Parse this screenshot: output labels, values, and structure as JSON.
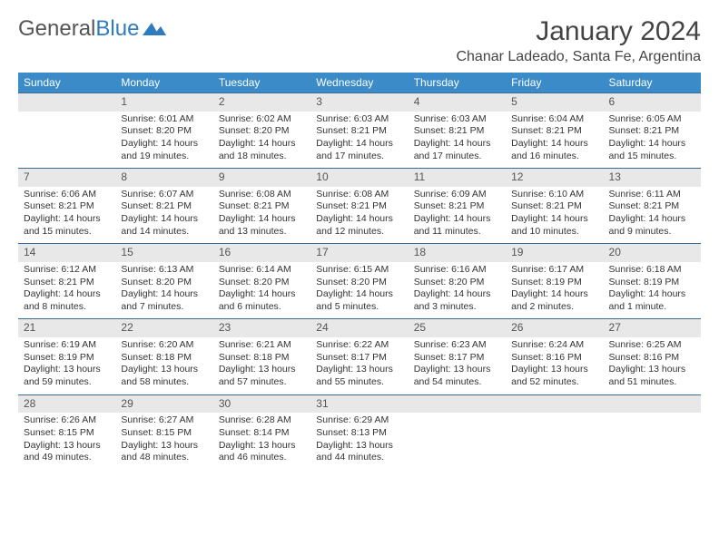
{
  "logo": {
    "text1": "General",
    "text2": "Blue"
  },
  "title": "January 2024",
  "location": "Chanar Ladeado, Santa Fe, Argentina",
  "colors": {
    "header_bg": "#3b8bc8",
    "header_text": "#ffffff",
    "daynum_bg": "#e8e8e8",
    "border": "#3b6a94",
    "logo_blue": "#2f7bbf"
  },
  "weekdays": [
    "Sunday",
    "Monday",
    "Tuesday",
    "Wednesday",
    "Thursday",
    "Friday",
    "Saturday"
  ],
  "weeks": [
    {
      "nums": [
        "",
        "1",
        "2",
        "3",
        "4",
        "5",
        "6"
      ],
      "cells": [
        {
          "sunrise": "",
          "sunset": "",
          "daylight": ""
        },
        {
          "sunrise": "Sunrise: 6:01 AM",
          "sunset": "Sunset: 8:20 PM",
          "daylight": "Daylight: 14 hours and 19 minutes."
        },
        {
          "sunrise": "Sunrise: 6:02 AM",
          "sunset": "Sunset: 8:20 PM",
          "daylight": "Daylight: 14 hours and 18 minutes."
        },
        {
          "sunrise": "Sunrise: 6:03 AM",
          "sunset": "Sunset: 8:21 PM",
          "daylight": "Daylight: 14 hours and 17 minutes."
        },
        {
          "sunrise": "Sunrise: 6:03 AM",
          "sunset": "Sunset: 8:21 PM",
          "daylight": "Daylight: 14 hours and 17 minutes."
        },
        {
          "sunrise": "Sunrise: 6:04 AM",
          "sunset": "Sunset: 8:21 PM",
          "daylight": "Daylight: 14 hours and 16 minutes."
        },
        {
          "sunrise": "Sunrise: 6:05 AM",
          "sunset": "Sunset: 8:21 PM",
          "daylight": "Daylight: 14 hours and 15 minutes."
        }
      ]
    },
    {
      "nums": [
        "7",
        "8",
        "9",
        "10",
        "11",
        "12",
        "13"
      ],
      "cells": [
        {
          "sunrise": "Sunrise: 6:06 AM",
          "sunset": "Sunset: 8:21 PM",
          "daylight": "Daylight: 14 hours and 15 minutes."
        },
        {
          "sunrise": "Sunrise: 6:07 AM",
          "sunset": "Sunset: 8:21 PM",
          "daylight": "Daylight: 14 hours and 14 minutes."
        },
        {
          "sunrise": "Sunrise: 6:08 AM",
          "sunset": "Sunset: 8:21 PM",
          "daylight": "Daylight: 14 hours and 13 minutes."
        },
        {
          "sunrise": "Sunrise: 6:08 AM",
          "sunset": "Sunset: 8:21 PM",
          "daylight": "Daylight: 14 hours and 12 minutes."
        },
        {
          "sunrise": "Sunrise: 6:09 AM",
          "sunset": "Sunset: 8:21 PM",
          "daylight": "Daylight: 14 hours and 11 minutes."
        },
        {
          "sunrise": "Sunrise: 6:10 AM",
          "sunset": "Sunset: 8:21 PM",
          "daylight": "Daylight: 14 hours and 10 minutes."
        },
        {
          "sunrise": "Sunrise: 6:11 AM",
          "sunset": "Sunset: 8:21 PM",
          "daylight": "Daylight: 14 hours and 9 minutes."
        }
      ]
    },
    {
      "nums": [
        "14",
        "15",
        "16",
        "17",
        "18",
        "19",
        "20"
      ],
      "cells": [
        {
          "sunrise": "Sunrise: 6:12 AM",
          "sunset": "Sunset: 8:21 PM",
          "daylight": "Daylight: 14 hours and 8 minutes."
        },
        {
          "sunrise": "Sunrise: 6:13 AM",
          "sunset": "Sunset: 8:20 PM",
          "daylight": "Daylight: 14 hours and 7 minutes."
        },
        {
          "sunrise": "Sunrise: 6:14 AM",
          "sunset": "Sunset: 8:20 PM",
          "daylight": "Daylight: 14 hours and 6 minutes."
        },
        {
          "sunrise": "Sunrise: 6:15 AM",
          "sunset": "Sunset: 8:20 PM",
          "daylight": "Daylight: 14 hours and 5 minutes."
        },
        {
          "sunrise": "Sunrise: 6:16 AM",
          "sunset": "Sunset: 8:20 PM",
          "daylight": "Daylight: 14 hours and 3 minutes."
        },
        {
          "sunrise": "Sunrise: 6:17 AM",
          "sunset": "Sunset: 8:19 PM",
          "daylight": "Daylight: 14 hours and 2 minutes."
        },
        {
          "sunrise": "Sunrise: 6:18 AM",
          "sunset": "Sunset: 8:19 PM",
          "daylight": "Daylight: 14 hours and 1 minute."
        }
      ]
    },
    {
      "nums": [
        "21",
        "22",
        "23",
        "24",
        "25",
        "26",
        "27"
      ],
      "cells": [
        {
          "sunrise": "Sunrise: 6:19 AM",
          "sunset": "Sunset: 8:19 PM",
          "daylight": "Daylight: 13 hours and 59 minutes."
        },
        {
          "sunrise": "Sunrise: 6:20 AM",
          "sunset": "Sunset: 8:18 PM",
          "daylight": "Daylight: 13 hours and 58 minutes."
        },
        {
          "sunrise": "Sunrise: 6:21 AM",
          "sunset": "Sunset: 8:18 PM",
          "daylight": "Daylight: 13 hours and 57 minutes."
        },
        {
          "sunrise": "Sunrise: 6:22 AM",
          "sunset": "Sunset: 8:17 PM",
          "daylight": "Daylight: 13 hours and 55 minutes."
        },
        {
          "sunrise": "Sunrise: 6:23 AM",
          "sunset": "Sunset: 8:17 PM",
          "daylight": "Daylight: 13 hours and 54 minutes."
        },
        {
          "sunrise": "Sunrise: 6:24 AM",
          "sunset": "Sunset: 8:16 PM",
          "daylight": "Daylight: 13 hours and 52 minutes."
        },
        {
          "sunrise": "Sunrise: 6:25 AM",
          "sunset": "Sunset: 8:16 PM",
          "daylight": "Daylight: 13 hours and 51 minutes."
        }
      ]
    },
    {
      "nums": [
        "28",
        "29",
        "30",
        "31",
        "",
        "",
        ""
      ],
      "cells": [
        {
          "sunrise": "Sunrise: 6:26 AM",
          "sunset": "Sunset: 8:15 PM",
          "daylight": "Daylight: 13 hours and 49 minutes."
        },
        {
          "sunrise": "Sunrise: 6:27 AM",
          "sunset": "Sunset: 8:15 PM",
          "daylight": "Daylight: 13 hours and 48 minutes."
        },
        {
          "sunrise": "Sunrise: 6:28 AM",
          "sunset": "Sunset: 8:14 PM",
          "daylight": "Daylight: 13 hours and 46 minutes."
        },
        {
          "sunrise": "Sunrise: 6:29 AM",
          "sunset": "Sunset: 8:13 PM",
          "daylight": "Daylight: 13 hours and 44 minutes."
        },
        {
          "sunrise": "",
          "sunset": "",
          "daylight": ""
        },
        {
          "sunrise": "",
          "sunset": "",
          "daylight": ""
        },
        {
          "sunrise": "",
          "sunset": "",
          "daylight": ""
        }
      ]
    }
  ]
}
